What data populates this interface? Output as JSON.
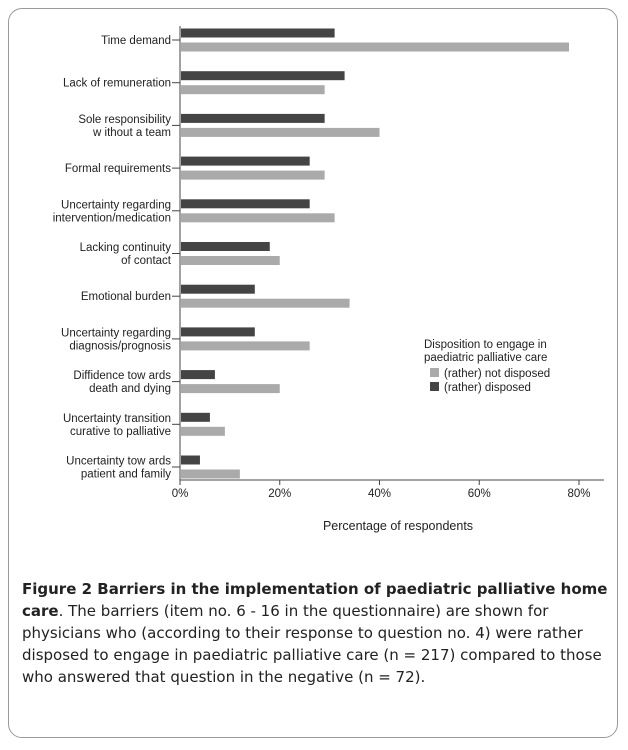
{
  "chart_data": {
    "type": "bar",
    "orientation": "horizontal",
    "title": "",
    "xlabel": "Percentage of respondents",
    "ylabel": "",
    "xlim": [
      0,
      85
    ],
    "xticks": [
      0,
      20,
      40,
      60,
      80
    ],
    "xtick_labels": [
      "0%",
      "20%",
      "40%",
      "60%",
      "80%"
    ],
    "grid": false,
    "legend_position": "right",
    "legend_title": [
      "Disposition to engage in",
      "paediatric palliative care"
    ],
    "categories": [
      [
        "Time demand"
      ],
      [
        "Lack of remuneration"
      ],
      [
        "Sole responsibility",
        "w ithout a team"
      ],
      [
        "Formal requirements"
      ],
      [
        "Uncertainty regarding",
        "intervention/medication"
      ],
      [
        "Lacking continuity",
        "of contact"
      ],
      [
        "Emotional burden"
      ],
      [
        "Uncertainty regarding",
        "diagnosis/prognosis"
      ],
      [
        "Diffidence tow ards",
        "death and dying"
      ],
      [
        "Uncertainty transition",
        "curative to palliative"
      ],
      [
        "Uncertainty tow ards",
        "patient and family"
      ]
    ],
    "series": [
      {
        "name": "(rather) disposed",
        "color": "#444444",
        "values": [
          31,
          33,
          29,
          26,
          26,
          18,
          15,
          15,
          7,
          6,
          4
        ]
      },
      {
        "name": "(rather) not disposed",
        "color": "#aaaaaa",
        "values": [
          78,
          29,
          40,
          29,
          31,
          20,
          34,
          26,
          20,
          9,
          12
        ]
      }
    ]
  },
  "caption": {
    "title": "Figure 2 Barriers in the implementation of paediatric palliative home care",
    "text": ". The barriers (item no. 6 - 16 in the questionnaire) are shown for physicians who (according to their response to question no. 4) were rather disposed to engage in paediatric palliative care (n = 217) compared to those who answered that question in the negative (n = 72)."
  }
}
